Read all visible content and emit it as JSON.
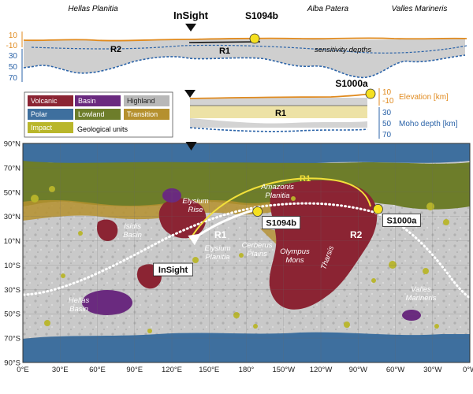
{
  "profile_top": {
    "places": [
      "Hellas Planitia",
      "Alba Patera",
      "Valles Marineris"
    ],
    "station": "InSight",
    "event": "S1094b",
    "ray_labels": [
      "R2",
      "R1"
    ],
    "note": "sensitivity depths",
    "orange_ticks": [
      "10",
      "-10"
    ],
    "blue_ticks": [
      "30",
      "50",
      "70"
    ]
  },
  "profile_right": {
    "event": "S1000a",
    "ray_label": "R1",
    "orange_ticks": [
      "10",
      "-10"
    ],
    "blue_ticks": [
      "30",
      "50",
      "70"
    ],
    "elevation_label": "Elevation [km]",
    "moho_label": "Moho depth [km]"
  },
  "legend": {
    "title": "Geological units",
    "items": [
      {
        "label": "Volcanic",
        "color": "#8b2433"
      },
      {
        "label": "Basin",
        "color": "#6a2a7f"
      },
      {
        "label": "Highland",
        "color": "#b8b8b8"
      },
      {
        "label": "Polar",
        "color": "#3e6f9e"
      },
      {
        "label": "Lowland",
        "color": "#6d7d2a"
      },
      {
        "label": "Transition",
        "color": "#b5902e"
      },
      {
        "label": "Impact",
        "color": "#b9b62a"
      }
    ]
  },
  "map": {
    "lat_labels": [
      "90°N",
      "70°N",
      "50°N",
      "30°N",
      "10°N",
      "10°S",
      "30°S",
      "50°S",
      "70°S",
      "90°S"
    ],
    "lon_labels": [
      "0°E",
      "30°E",
      "60°E",
      "90°E",
      "120°E",
      "150°E",
      "180°",
      "150°W",
      "120°W",
      "90°W",
      "60°W",
      "30°W",
      "0°W"
    ],
    "regions": [
      {
        "key": "amazonis",
        "label": "Amazonis Planitia"
      },
      {
        "key": "elysium-rise",
        "label": "Elysium Rise"
      },
      {
        "key": "isidis",
        "label": "Isidis Basin"
      },
      {
        "key": "elysium-planitia",
        "label": "Elysium Planitia"
      },
      {
        "key": "cerberus",
        "label": "Cerberus Plains"
      },
      {
        "key": "olympus",
        "label": "Olympus Mons"
      },
      {
        "key": "tharsis",
        "label": "Tharsis"
      },
      {
        "key": "valles",
        "label": "Valles Marineris"
      },
      {
        "key": "hellas",
        "label": "Hellas Basin"
      }
    ],
    "station": {
      "label": "InSight",
      "lon_e": 135.6,
      "lat": 4.5
    },
    "events": [
      {
        "label": "S1094b",
        "lon_e": 189.0,
        "lat": 34.0
      },
      {
        "label": "S1000a",
        "lon_e": 286.0,
        "lat": 36.0
      }
    ],
    "ray_labels": [
      {
        "key": "r1-yellow",
        "label": "R1"
      },
      {
        "key": "r1-white",
        "label": "R1"
      },
      {
        "key": "r2",
        "label": "R2"
      }
    ]
  }
}
